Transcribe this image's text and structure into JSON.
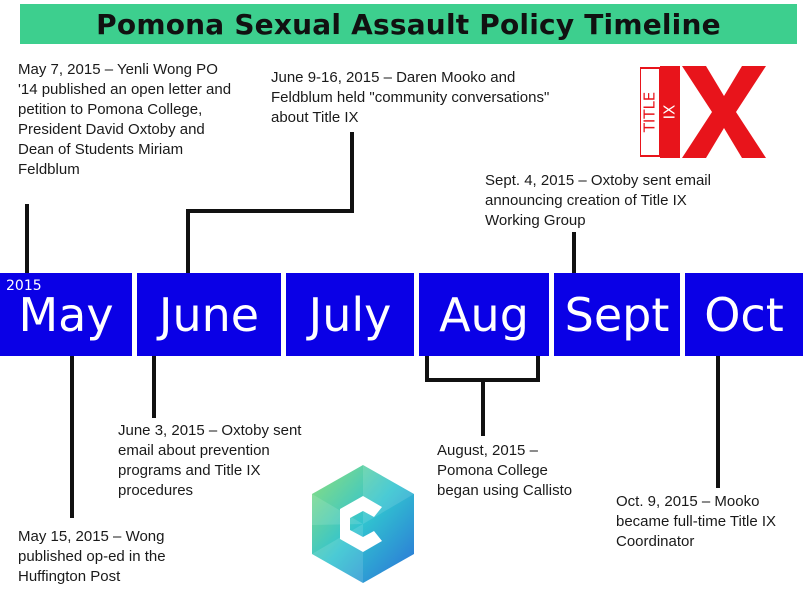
{
  "title": "Pomona Sexual Assault Policy Timeline",
  "year": "2015",
  "months": [
    "May",
    "June",
    "July",
    "Aug",
    "Sept",
    "Oct"
  ],
  "events": {
    "may7": "May 7, 2015 – Yenli Wong PO '14 published an open letter and petition to Pomona College, President David Oxtoby and Dean of Students Miriam Feldblum",
    "june916": "June 9-16, 2015 – Daren Mooko and Feldblum held \"community conversations\" about Title IX",
    "sept4": "Sept. 4, 2015 – Oxtoby sent email announcing creation of Title IX Working Group",
    "may15": "May 15, 2015 – Wong published op-ed in the Huffington Post",
    "june3": "June 3, 2015 – Oxtoby sent email about prevention programs and Title IX procedures",
    "aug": "August, 2015 – Pomona College began using Callisto",
    "oct9": "Oct. 9, 2015 – Mooko became full-time Title IX Coordinator"
  },
  "logos": {
    "title_ix": {
      "small_text": "TITLE",
      "big_text": "IX",
      "color": "#e8141b"
    },
    "callisto": {
      "icon": "callisto-c-logo",
      "colors": [
        "#2b8fd8",
        "#31c3d0",
        "#8fe07a"
      ]
    }
  },
  "colors": {
    "title_bg": "#3dcf8e",
    "band": "#0a00e6",
    "line": "#111111"
  }
}
